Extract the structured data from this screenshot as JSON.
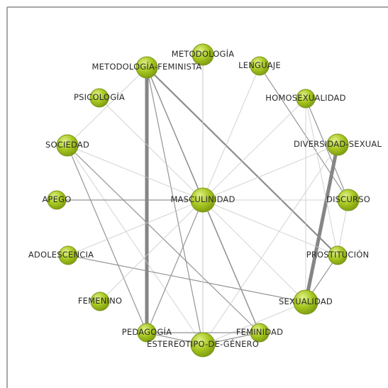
{
  "nodes": [
    {
      "id": "metodologia",
      "label": "METODOLOGÍA",
      "weight": 2
    },
    {
      "id": "metodologia_feminista",
      "label": "METODOLOGÍA-FEMINISTA",
      "weight": 2
    },
    {
      "id": "lenguaje",
      "label": "LENGUAJE",
      "weight": 1
    },
    {
      "id": "psicologia",
      "label": "PSICOLOGÍA",
      "weight": 1
    },
    {
      "id": "homosexualidad",
      "label": "HOMOSEXUALIDAD",
      "weight": 1
    },
    {
      "id": "sociedad",
      "label": "SOCIEDAD",
      "weight": 2
    },
    {
      "id": "diversidad_sexual",
      "label": "DIVERSIDAD-SEXUAL",
      "weight": 2
    },
    {
      "id": "apego",
      "label": "APEGO",
      "weight": 1
    },
    {
      "id": "masculinidad",
      "label": "MASCULINIDAD",
      "weight": 3
    },
    {
      "id": "discurso",
      "label": "DISCURSO",
      "weight": 2
    },
    {
      "id": "adolescencia",
      "label": "ADOLESCENCIA",
      "weight": 1
    },
    {
      "id": "prostitucion",
      "label": "PROSTITUCIÓN",
      "weight": 1
    },
    {
      "id": "femenino",
      "label": "FEMENINO",
      "weight": 1
    },
    {
      "id": "sexualidad",
      "label": "SEXUALIDAD",
      "weight": 3
    },
    {
      "id": "pedagogia",
      "label": "PEDAGOGÍA",
      "weight": 1
    },
    {
      "id": "feminidad",
      "label": "FEMINIDAD",
      "weight": 1
    },
    {
      "id": "estereotipo_de_genero",
      "label": "ESTEREOTIPO-DE-GÉNERO",
      "weight": 3
    }
  ],
  "edges": [
    {
      "source": "metodologia_feminista",
      "target": "pedagogia",
      "weight": 5
    },
    {
      "source": "diversidad_sexual",
      "target": "sexualidad",
      "weight": 5
    },
    {
      "source": "metodologia_feminista",
      "target": "prostitucion",
      "weight": 2
    },
    {
      "source": "metodologia_feminista",
      "target": "masculinidad",
      "weight": 1
    },
    {
      "source": "metodologia_feminista",
      "target": "feminidad",
      "weight": 1
    },
    {
      "source": "metodologia_feminista",
      "target": "estereotipo_de_genero",
      "weight": 1
    },
    {
      "source": "metodologia",
      "target": "masculinidad",
      "weight": 0.5
    },
    {
      "source": "lenguaje",
      "target": "masculinidad",
      "weight": 0.5
    },
    {
      "source": "lenguaje",
      "target": "discurso",
      "weight": 1
    },
    {
      "source": "homosexualidad",
      "target": "masculinidad",
      "weight": 0.5
    },
    {
      "source": "homosexualidad",
      "target": "discurso",
      "weight": 1
    },
    {
      "source": "homosexualidad",
      "target": "sexualidad",
      "weight": 0.5
    },
    {
      "source": "psicologia",
      "target": "masculinidad",
      "weight": 0.5
    },
    {
      "source": "sociedad",
      "target": "masculinidad",
      "weight": 0.5
    },
    {
      "source": "sociedad",
      "target": "metodologia_feminista",
      "weight": 0.5
    },
    {
      "source": "sociedad",
      "target": "pedagogia",
      "weight": 1
    },
    {
      "source": "sociedad",
      "target": "feminidad",
      "weight": 1
    },
    {
      "source": "sociedad",
      "target": "estereotipo_de_genero",
      "weight": 0.5
    },
    {
      "source": "apego",
      "target": "masculinidad",
      "weight": 1
    },
    {
      "source": "adolescencia",
      "target": "sexualidad",
      "weight": 1
    },
    {
      "source": "adolescencia",
      "target": "masculinidad",
      "weight": 0.5
    },
    {
      "source": "femenino",
      "target": "masculinidad",
      "weight": 0.5
    },
    {
      "source": "diversidad_sexual",
      "target": "masculinidad",
      "weight": 0.5
    },
    {
      "source": "diversidad_sexual",
      "target": "estereotipo_de_genero",
      "weight": 0.5
    },
    {
      "source": "discurso",
      "target": "masculinidad",
      "weight": 0.5
    },
    {
      "source": "discurso",
      "target": "prostitucion",
      "weight": 0.5
    },
    {
      "source": "masculinidad",
      "target": "sexualidad",
      "weight": 0.5
    },
    {
      "source": "masculinidad",
      "target": "prostitucion",
      "weight": 0.5
    },
    {
      "source": "masculinidad",
      "target": "pedagogia",
      "weight": 1
    },
    {
      "source": "masculinidad",
      "target": "feminidad",
      "weight": 1
    },
    {
      "source": "masculinidad",
      "target": "estereotipo_de_genero",
      "weight": 0.5
    },
    {
      "source": "prostitucion",
      "target": "sexualidad",
      "weight": 1
    },
    {
      "source": "sexualidad",
      "target": "estereotipo_de_genero",
      "weight": 0.5
    },
    {
      "source": "pedagogia",
      "target": "feminidad",
      "weight": 1
    },
    {
      "source": "pedagogia",
      "target": "estereotipo_de_genero",
      "weight": 1
    },
    {
      "source": "feminidad",
      "target": "estereotipo_de_genero",
      "weight": 1
    },
    {
      "source": "metodologia",
      "target": "estereotipo_de_genero",
      "weight": 0.5
    },
    {
      "source": "homosexualidad",
      "target": "prostitucion",
      "weight": 0.5
    }
  ],
  "colors": {
    "node_fill": "#a6c71f",
    "node_stroke": "#7a961a",
    "node_highlight": "#d9ec7a",
    "edge": "#8a8a8a",
    "edge_light": "#c8c8c8",
    "frame": "#888888",
    "background": "#ffffff"
  }
}
